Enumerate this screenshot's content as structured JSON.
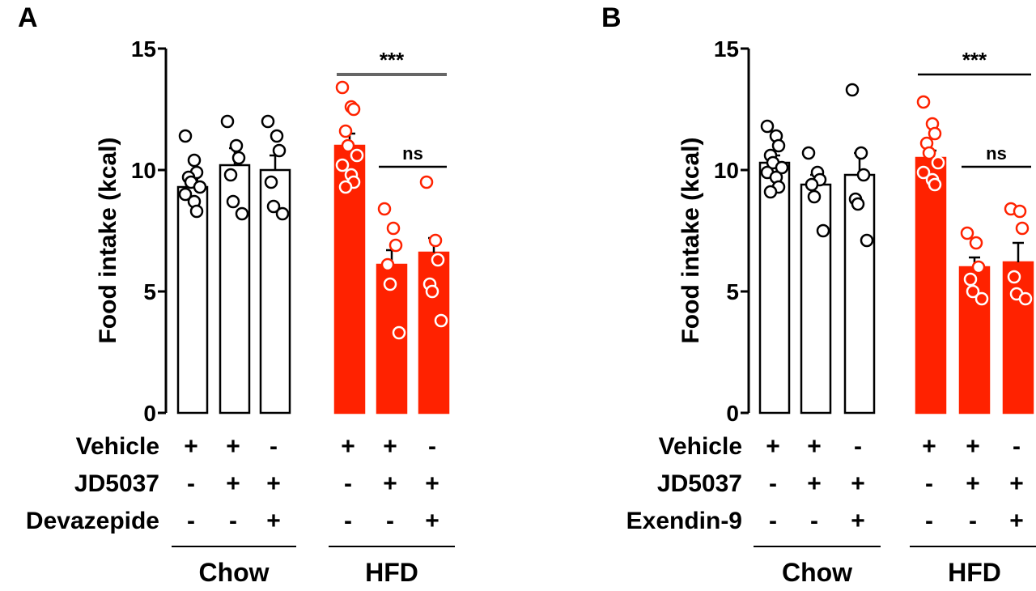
{
  "colors": {
    "hfd": "#ff2200",
    "chow": "#ffffff",
    "ink": "#000000",
    "sig_line_a": "#666666"
  },
  "chart_data": [
    {
      "panel_letter": "A",
      "type": "bar",
      "ylabel": "Food intake (kcal)",
      "ylim": [
        0,
        15
      ],
      "yticks": [
        "0",
        "5",
        "10",
        "15"
      ],
      "condition_rows": [
        {
          "label": "Vehicle",
          "signs": [
            "+",
            "+",
            "-",
            "+",
            "+",
            "-"
          ]
        },
        {
          "label": "JD5037",
          "signs": [
            "-",
            "+",
            "+",
            "-",
            "+",
            "+"
          ]
        },
        {
          "label": "Devazepide",
          "signs": [
            "-",
            "-",
            "+",
            "-",
            "-",
            "+"
          ]
        }
      ],
      "groups": [
        {
          "label": "Chow",
          "bars": [
            0,
            1,
            2
          ]
        },
        {
          "label": "HFD",
          "bars": [
            3,
            4,
            5
          ]
        }
      ],
      "bars": [
        {
          "diet": "Chow",
          "mean": 9.3,
          "sem": 0.3,
          "points": [
            11.4,
            10.4,
            9.9,
            9.7,
            9.5,
            9.3,
            9.0,
            8.7,
            8.3
          ]
        },
        {
          "diet": "Chow",
          "mean": 10.2,
          "sem": 0.7,
          "points": [
            12.0,
            11.0,
            10.5,
            9.8,
            8.7,
            8.2
          ]
        },
        {
          "diet": "Chow",
          "mean": 10.0,
          "sem": 0.6,
          "points": [
            12.0,
            11.4,
            10.8,
            9.5,
            8.5,
            8.2
          ]
        },
        {
          "diet": "HFD",
          "mean": 11.0,
          "sem": 0.5,
          "points": [
            13.4,
            12.6,
            12.5,
            11.6,
            11.0,
            10.6,
            10.2,
            9.8,
            9.5,
            9.3
          ]
        },
        {
          "diet": "HFD",
          "mean": 6.1,
          "sem": 0.6,
          "points": [
            8.4,
            7.6,
            6.9,
            6.1,
            5.3,
            3.3
          ]
        },
        {
          "diet": "HFD",
          "mean": 6.6,
          "sem": 0.6,
          "points": [
            9.5,
            7.1,
            6.3,
            5.3,
            5.0,
            3.8
          ]
        }
      ],
      "significance": [
        {
          "bars": [
            3,
            5
          ],
          "label": "***"
        },
        {
          "bars": [
            4,
            5
          ],
          "label": "ns"
        }
      ]
    },
    {
      "panel_letter": "B",
      "type": "bar",
      "ylabel": "Food intake (kcal)",
      "ylim": [
        0,
        15
      ],
      "yticks": [
        "0",
        "5",
        "10",
        "15"
      ],
      "condition_rows": [
        {
          "label": "Vehicle",
          "signs": [
            "+",
            "+",
            "-",
            "+",
            "+",
            "-"
          ]
        },
        {
          "label": "JD5037",
          "signs": [
            "-",
            "+",
            "+",
            "-",
            "+",
            "+"
          ]
        },
        {
          "label": "Exendin-9",
          "signs": [
            "-",
            "-",
            "+",
            "-",
            "-",
            "+"
          ]
        }
      ],
      "groups": [
        {
          "label": "Chow",
          "bars": [
            0,
            1,
            2
          ]
        },
        {
          "label": "HFD",
          "bars": [
            3,
            4,
            5
          ]
        }
      ],
      "bars": [
        {
          "diet": "Chow",
          "mean": 10.3,
          "sem": 0.3,
          "points": [
            11.8,
            11.4,
            11.0,
            10.6,
            10.3,
            10.1,
            9.9,
            9.7,
            9.3,
            9.1
          ]
        },
        {
          "diet": "Chow",
          "mean": 9.4,
          "sem": 0.4,
          "points": [
            10.7,
            9.9,
            9.6,
            9.4,
            8.9,
            7.5
          ]
        },
        {
          "diet": "Chow",
          "mean": 9.8,
          "sem": 0.9,
          "points": [
            13.3,
            10.7,
            9.8,
            8.8,
            8.6,
            7.1
          ]
        },
        {
          "diet": "HFD",
          "mean": 10.5,
          "sem": 0.3,
          "points": [
            12.8,
            11.9,
            11.5,
            11.1,
            10.7,
            10.3,
            9.9,
            9.6,
            9.4
          ]
        },
        {
          "diet": "HFD",
          "mean": 6.0,
          "sem": 0.4,
          "points": [
            7.4,
            7.0,
            6.0,
            5.5,
            5.0,
            4.7
          ]
        },
        {
          "diet": "HFD",
          "mean": 6.2,
          "sem": 0.8,
          "points": [
            8.4,
            8.3,
            7.6,
            5.6,
            4.9,
            4.7
          ]
        }
      ],
      "significance": [
        {
          "bars": [
            3,
            5
          ],
          "label": "***"
        },
        {
          "bars": [
            4,
            5
          ],
          "label": "ns"
        }
      ]
    }
  ]
}
